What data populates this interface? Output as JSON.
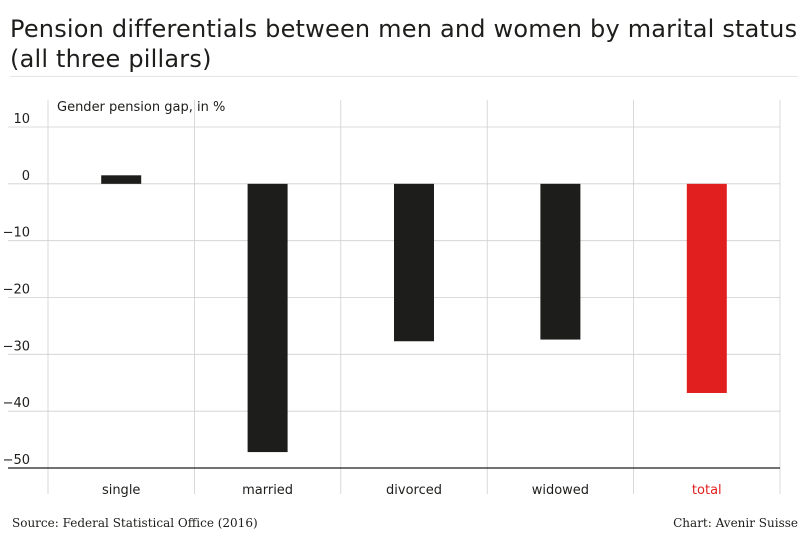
{
  "title_lines": [
    "Pension differentials between men and women by marital status",
    "(all three pillars)"
  ],
  "footer": {
    "source": "Source: Federal Statistical Office (2016)",
    "credit": "Chart: Avenir Suisse"
  },
  "colors": {
    "default_bar": "#1d1d1b",
    "highlight_bar": "#e21f1f",
    "grid": "#cfcfcf",
    "axis": "#1d1d1b"
  },
  "chart_data": {
    "type": "bar",
    "title": "Pension differentials between men and women by marital status (all three pillars)",
    "ylabel": "Gender pension gap, in %",
    "xlabel": "",
    "categories": [
      "single",
      "married",
      "divorced",
      "widowed",
      "total"
    ],
    "values": [
      1.5,
      -47.2,
      -27.7,
      -27.4,
      -36.8
    ],
    "highlight": [
      "total"
    ],
    "ylim": [
      -50,
      10
    ],
    "yticks": [
      10,
      0,
      -10,
      -20,
      -30,
      -40,
      -50
    ],
    "grid": true,
    "legend": "none"
  }
}
